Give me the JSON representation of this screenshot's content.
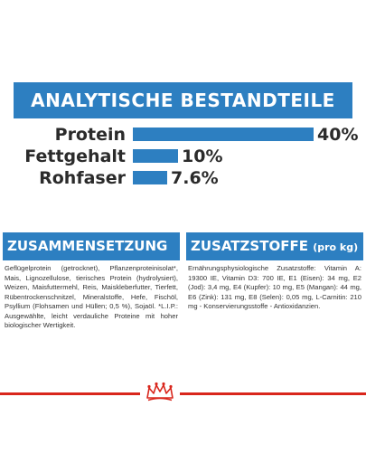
{
  "banner": {
    "title": "ANALYTISCHE BESTANDTEILE"
  },
  "analysis": [
    {
      "label": "Protein",
      "value": "40%",
      "fraction": 0.4
    },
    {
      "label": "Fettgehalt",
      "value": "10%",
      "fraction": 0.1
    },
    {
      "label": "Rohfaser",
      "value": "7.6%",
      "fraction": 0.076
    }
  ],
  "composition": {
    "heading": "ZUSAMMENSETZUNG",
    "text": "Geflügelprotein (getrocknet), Pflanzenproteinisolat*, Mais, Lignozellulose, tierisches Protein (hydrolysiert), Weizen, Maisfuttermehl, Reis, Maiskleberfutter, Tierfett, Rübentrockenschnitzel, Mineralstoffe, Hefe, Fischöl, Psyllium (Flohsamen und Hüllen; 0,5 %), Sojaöl. *L.I.P.: Ausgewählte, leicht verdauliche Proteine mit hoher biologischer Wertigkeit."
  },
  "additives": {
    "heading": "ZUSATZSTOFFE",
    "heading_suffix": "(pro kg)",
    "text": "Ernährungsphysiologische Zusatzstoffe: Vitamin A: 19300 IE, Vitamin D3: 700 IE, E1 (Eisen): 34 mg, E2 (Jod): 3,4 mg, E4 (Kupfer): 10 mg, E5 (Mangan): 44 mg, E6 (Zink): 131 mg, E8 (Selen): 0,05 mg, L-Carnitin: 210 mg - Konservierungsstoffe - Antioxidanzien."
  },
  "colors": {
    "brand_blue": "#2d7fc1",
    "brand_red": "#d9261c",
    "text": "#2b2b2b"
  },
  "logo": {
    "icon": "royal-canin-crown-icon"
  }
}
